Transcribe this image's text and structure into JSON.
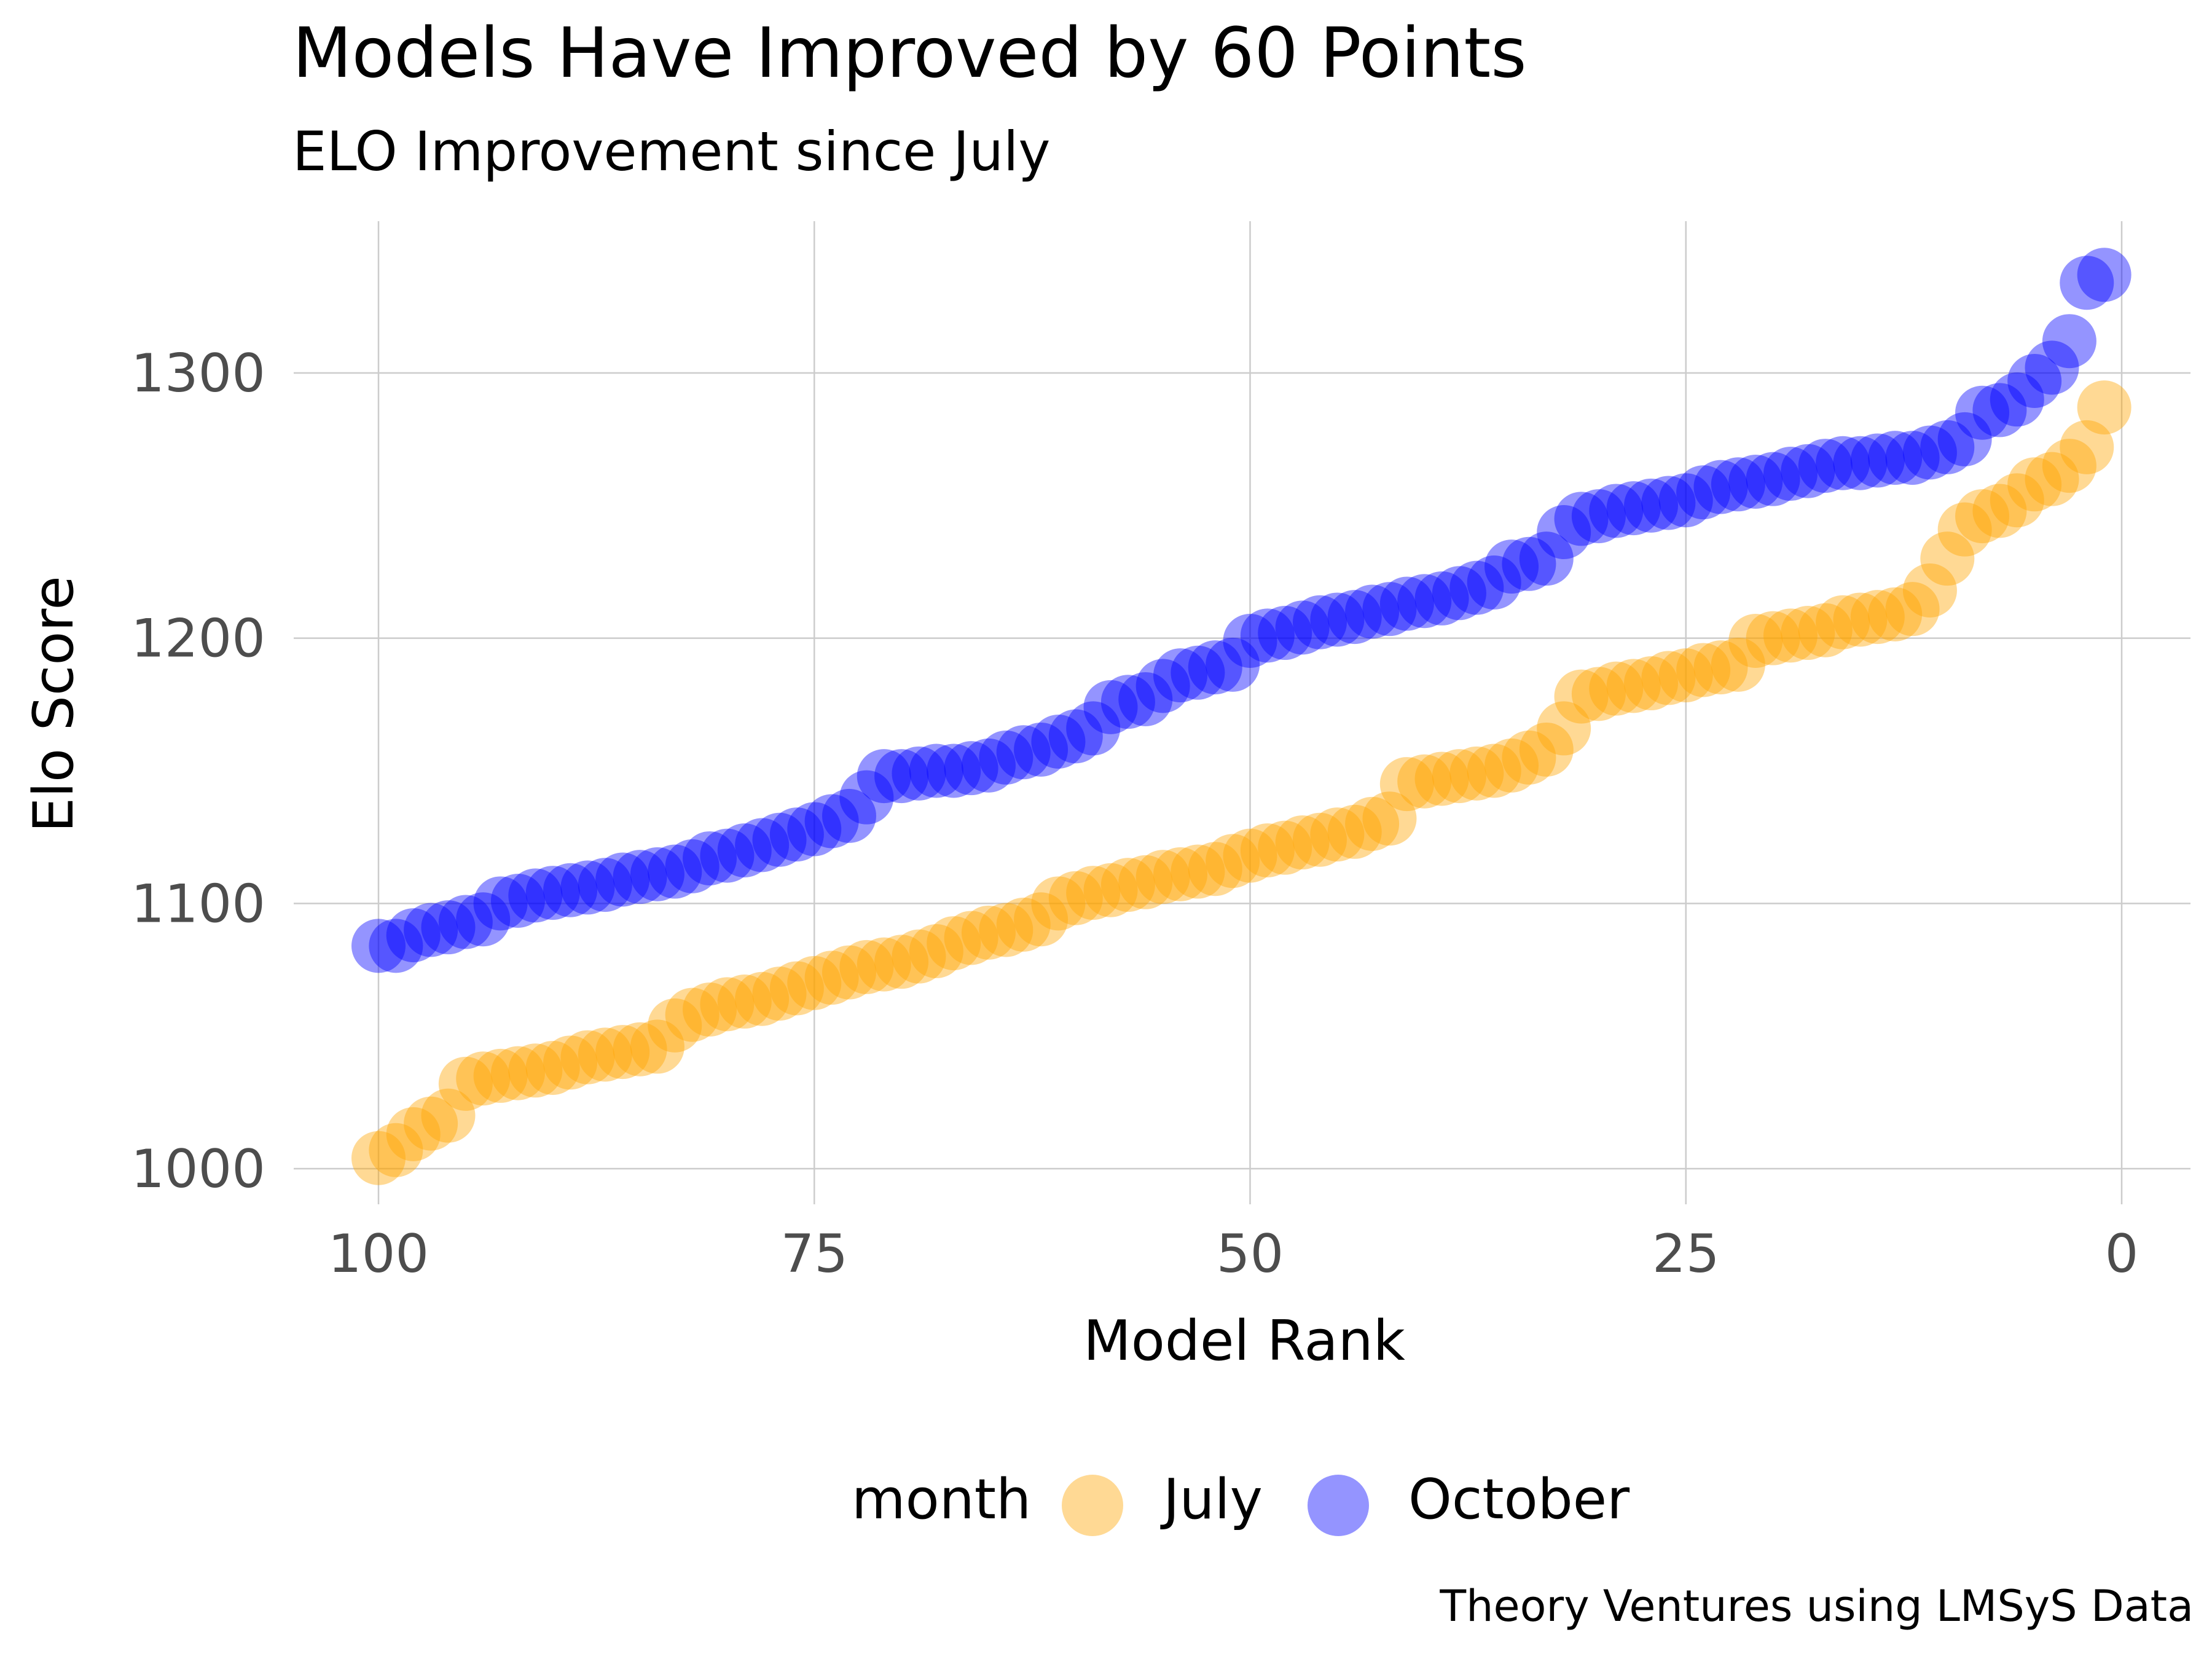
{
  "chart_data": {
    "type": "scatter",
    "title": "Models Have Improved by 60 Points",
    "subtitle": "ELO Improvement since July",
    "caption": "Theory Ventures using LMSyS Data",
    "xlabel": "Model Rank",
    "ylabel": "Elo Score",
    "xlim": [
      104,
      -3
    ],
    "ylim": [
      985,
      1350
    ],
    "x_reversed": true,
    "x_ticks": [
      100,
      75,
      50,
      25,
      0
    ],
    "y_ticks": [
      1000,
      1100,
      1200,
      1300
    ],
    "grid": true,
    "legend": {
      "title": "month",
      "position": "bottom"
    },
    "colors": {
      "July": "#FFA500",
      "October": "#0000FF"
    },
    "series": [
      {
        "name": "July",
        "color": "#FFA500",
        "points": [
          [
            100,
            1004
          ],
          [
            99,
            1007
          ],
          [
            98,
            1013
          ],
          [
            97,
            1017
          ],
          [
            96,
            1020
          ],
          [
            95,
            1032
          ],
          [
            94,
            1034
          ],
          [
            93,
            1035
          ],
          [
            92,
            1036
          ],
          [
            91,
            1037
          ],
          [
            90,
            1038
          ],
          [
            89,
            1040
          ],
          [
            88,
            1042
          ],
          [
            87,
            1043
          ],
          [
            86,
            1044
          ],
          [
            85,
            1045
          ],
          [
            84,
            1046
          ],
          [
            83,
            1054
          ],
          [
            82,
            1058
          ],
          [
            81,
            1060
          ],
          [
            80,
            1062
          ],
          [
            79,
            1063
          ],
          [
            78,
            1064
          ],
          [
            77,
            1066
          ],
          [
            76,
            1068
          ],
          [
            75,
            1070
          ],
          [
            74,
            1072
          ],
          [
            73,
            1074
          ],
          [
            72,
            1076
          ],
          [
            71,
            1077
          ],
          [
            70,
            1078
          ],
          [
            69,
            1080
          ],
          [
            68,
            1082
          ],
          [
            67,
            1085
          ],
          [
            66,
            1087
          ],
          [
            65,
            1089
          ],
          [
            64,
            1090
          ],
          [
            63,
            1092
          ],
          [
            62,
            1094
          ],
          [
            61,
            1100
          ],
          [
            60,
            1102
          ],
          [
            59,
            1104
          ],
          [
            58,
            1105
          ],
          [
            57,
            1107
          ],
          [
            56,
            1108
          ],
          [
            55,
            1110
          ],
          [
            54,
            1111
          ],
          [
            53,
            1112
          ],
          [
            52,
            1113
          ],
          [
            51,
            1116
          ],
          [
            50,
            1118
          ],
          [
            49,
            1120
          ],
          [
            48,
            1121
          ],
          [
            47,
            1123
          ],
          [
            46,
            1124
          ],
          [
            45,
            1126
          ],
          [
            44,
            1127
          ],
          [
            43,
            1130
          ],
          [
            42,
            1132
          ],
          [
            41,
            1145
          ],
          [
            40,
            1146
          ],
          [
            39,
            1147
          ],
          [
            38,
            1148
          ],
          [
            37,
            1149
          ],
          [
            36,
            1150
          ],
          [
            35,
            1152
          ],
          [
            34,
            1155
          ],
          [
            33,
            1158
          ],
          [
            32,
            1166
          ],
          [
            31,
            1178
          ],
          [
            30,
            1179
          ],
          [
            29,
            1181
          ],
          [
            28,
            1182
          ],
          [
            27,
            1183
          ],
          [
            26,
            1185
          ],
          [
            25,
            1186
          ],
          [
            24,
            1188
          ],
          [
            23,
            1189
          ],
          [
            22,
            1190
          ],
          [
            21,
            1199
          ],
          [
            20,
            1200
          ],
          [
            19,
            1201
          ],
          [
            18,
            1202
          ],
          [
            17,
            1203
          ],
          [
            16,
            1206
          ],
          [
            15,
            1207
          ],
          [
            14,
            1208
          ],
          [
            13,
            1209
          ],
          [
            12,
            1211
          ],
          [
            11,
            1218
          ],
          [
            10,
            1230
          ],
          [
            9,
            1241
          ],
          [
            8,
            1246
          ],
          [
            7,
            1248
          ],
          [
            6,
            1252
          ],
          [
            5,
            1258
          ],
          [
            4,
            1260
          ],
          [
            3,
            1265
          ],
          [
            2,
            1272
          ],
          [
            1,
            1287
          ]
        ]
      },
      {
        "name": "October",
        "color": "#0000FF",
        "points": [
          [
            100,
            1084
          ],
          [
            99,
            1084
          ],
          [
            98,
            1088
          ],
          [
            97,
            1090
          ],
          [
            96,
            1091
          ],
          [
            95,
            1093
          ],
          [
            94,
            1094
          ],
          [
            93,
            1100
          ],
          [
            92,
            1101
          ],
          [
            91,
            1103
          ],
          [
            90,
            1104
          ],
          [
            89,
            1105
          ],
          [
            88,
            1106
          ],
          [
            87,
            1107
          ],
          [
            86,
            1109
          ],
          [
            85,
            1110
          ],
          [
            84,
            1111
          ],
          [
            83,
            1112
          ],
          [
            82,
            1114
          ],
          [
            81,
            1117
          ],
          [
            80,
            1118
          ],
          [
            79,
            1120
          ],
          [
            78,
            1122
          ],
          [
            77,
            1124
          ],
          [
            76,
            1126
          ],
          [
            75,
            1128
          ],
          [
            74,
            1131
          ],
          [
            73,
            1133
          ],
          [
            72,
            1140
          ],
          [
            71,
            1148
          ],
          [
            70,
            1148
          ],
          [
            69,
            1149
          ],
          [
            68,
            1150
          ],
          [
            67,
            1150
          ],
          [
            66,
            1151
          ],
          [
            65,
            1152
          ],
          [
            64,
            1155
          ],
          [
            63,
            1157
          ],
          [
            62,
            1158
          ],
          [
            61,
            1161
          ],
          [
            60,
            1163
          ],
          [
            59,
            1166
          ],
          [
            58,
            1174
          ],
          [
            57,
            1176
          ],
          [
            56,
            1177
          ],
          [
            55,
            1182
          ],
          [
            54,
            1186
          ],
          [
            53,
            1187
          ],
          [
            52,
            1189
          ],
          [
            51,
            1190
          ],
          [
            50,
            1199
          ],
          [
            49,
            1201
          ],
          [
            48,
            1202
          ],
          [
            47,
            1204
          ],
          [
            46,
            1206
          ],
          [
            45,
            1207
          ],
          [
            44,
            1208
          ],
          [
            43,
            1210
          ],
          [
            42,
            1211
          ],
          [
            41,
            1213
          ],
          [
            40,
            1214
          ],
          [
            39,
            1215
          ],
          [
            38,
            1217
          ],
          [
            37,
            1219
          ],
          [
            36,
            1221
          ],
          [
            35,
            1227
          ],
          [
            34,
            1228
          ],
          [
            33,
            1230
          ],
          [
            32,
            1240
          ],
          [
            31,
            1245
          ],
          [
            30,
            1246
          ],
          [
            29,
            1248
          ],
          [
            28,
            1249
          ],
          [
            27,
            1250
          ],
          [
            26,
            1251
          ],
          [
            25,
            1252
          ],
          [
            24,
            1255
          ],
          [
            23,
            1257
          ],
          [
            22,
            1258
          ],
          [
            21,
            1259
          ],
          [
            20,
            1260
          ],
          [
            19,
            1262
          ],
          [
            18,
            1263
          ],
          [
            17,
            1265
          ],
          [
            16,
            1266
          ],
          [
            15,
            1266
          ],
          [
            14,
            1267
          ],
          [
            13,
            1268
          ],
          [
            12,
            1268
          ],
          [
            11,
            1270
          ],
          [
            10,
            1272
          ],
          [
            9,
            1275
          ],
          [
            8,
            1285
          ],
          [
            7,
            1286
          ],
          [
            6,
            1290
          ],
          [
            5,
            1297
          ],
          [
            4,
            1302
          ],
          [
            3,
            1312
          ],
          [
            2,
            1334
          ],
          [
            1,
            1337
          ]
        ]
      }
    ]
  }
}
